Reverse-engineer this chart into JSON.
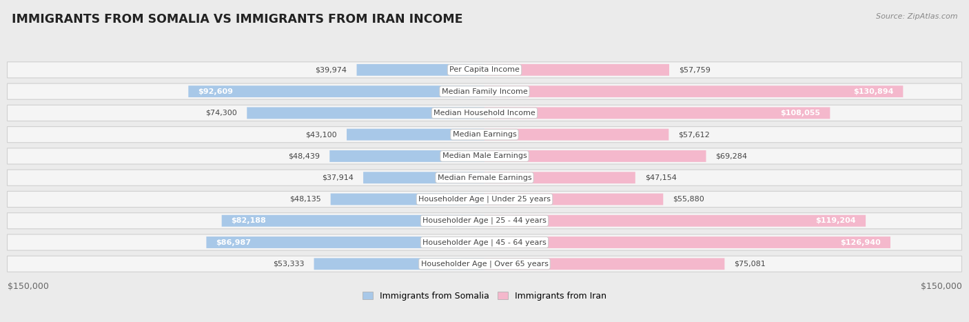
{
  "title": "IMMIGRANTS FROM SOMALIA VS IMMIGRANTS FROM IRAN INCOME",
  "source": "Source: ZipAtlas.com",
  "categories": [
    "Per Capita Income",
    "Median Family Income",
    "Median Household Income",
    "Median Earnings",
    "Median Male Earnings",
    "Median Female Earnings",
    "Householder Age | Under 25 years",
    "Householder Age | 25 - 44 years",
    "Householder Age | 45 - 64 years",
    "Householder Age | Over 65 years"
  ],
  "somalia_values": [
    39974,
    92609,
    74300,
    43100,
    48439,
    37914,
    48135,
    82188,
    86987,
    53333
  ],
  "iran_values": [
    57759,
    130894,
    108055,
    57612,
    69284,
    47154,
    55880,
    119204,
    126940,
    75081
  ],
  "somalia_labels": [
    "$39,974",
    "$92,609",
    "$74,300",
    "$43,100",
    "$48,439",
    "$37,914",
    "$48,135",
    "$82,188",
    "$86,987",
    "$53,333"
  ],
  "iran_labels": [
    "$57,759",
    "$130,894",
    "$108,055",
    "$57,612",
    "$69,284",
    "$47,154",
    "$55,880",
    "$119,204",
    "$126,940",
    "$75,081"
  ],
  "somalia_label_inside": [
    false,
    true,
    false,
    false,
    false,
    false,
    false,
    true,
    true,
    false
  ],
  "iran_label_inside": [
    false,
    true,
    true,
    false,
    false,
    false,
    false,
    true,
    true,
    false
  ],
  "max_val": 150000,
  "somalia_color": "#a8c8e8",
  "somalia_color_strong": "#5b9bd5",
  "iran_color": "#f4b8cc",
  "iran_color_strong": "#e8607a",
  "background_color": "#ebebeb",
  "row_bg_color": "#f5f5f5",
  "row_border_color": "#d0d0d0",
  "label_dark": "#444444",
  "label_white": "#ffffff",
  "legend_somalia": "Immigrants from Somalia",
  "legend_iran": "Immigrants from Iran",
  "axis_label_color": "#666666",
  "title_color": "#222222",
  "source_color": "#888888",
  "label_fontsize": 8.0,
  "title_fontsize": 12.5,
  "source_fontsize": 8.0,
  "cat_fontsize": 8.0,
  "axis_fontsize": 9.0
}
